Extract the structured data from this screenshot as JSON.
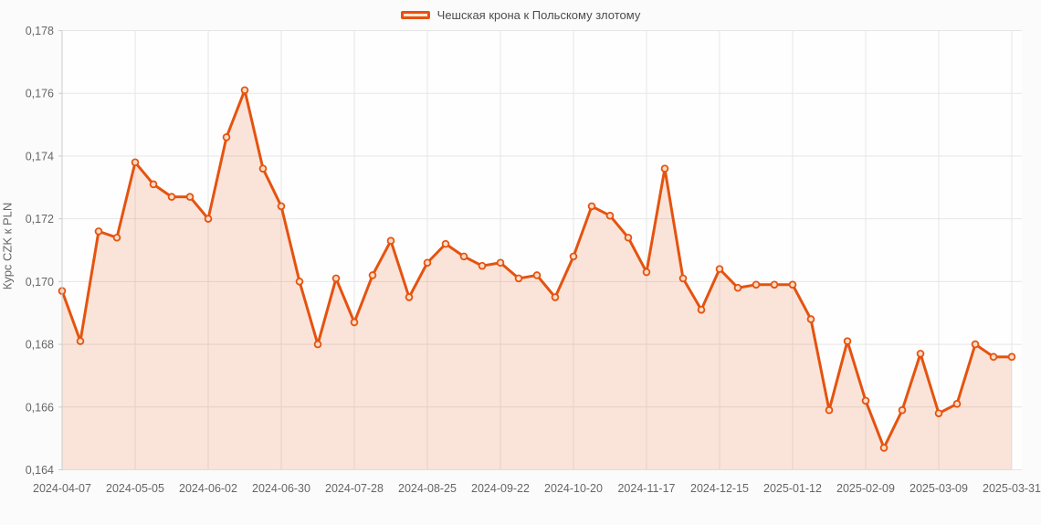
{
  "legend": {
    "label": "Чешская крона к Польскому злотому"
  },
  "chart_data": {
    "type": "area",
    "title": "",
    "xlabel": "",
    "ylabel": "Курс CZK к PLN",
    "legend_position": "top-center",
    "grid": true,
    "decimal_separator": ",",
    "ylim": [
      0.164,
      0.178
    ],
    "yticks": [
      0.178,
      0.176,
      0.174,
      0.172,
      0.17,
      0.168,
      0.166,
      0.164
    ],
    "ytick_labels": [
      "0,178",
      "0,176",
      "0,174",
      "0,172",
      "0,170",
      "0,168",
      "0,166",
      "0,164"
    ],
    "xtick_indices": [
      0,
      4,
      8,
      12,
      16,
      20,
      24,
      28,
      32,
      36,
      40,
      44,
      48,
      52
    ],
    "xtick_labels": [
      "2024-04-07",
      "2024-05-05",
      "2024-06-02",
      "2024-06-30",
      "2024-07-28",
      "2024-08-25",
      "2024-09-22",
      "2024-10-20",
      "2024-11-17",
      "2024-12-15",
      "2025-01-12",
      "2025-02-09",
      "2025-03-09",
      "2025-03-31"
    ],
    "series": [
      {
        "name": "Чешская крона к Польскому злотому",
        "x": [
          "2024-04-07",
          "2024-04-14",
          "2024-04-21",
          "2024-04-28",
          "2024-05-05",
          "2024-05-12",
          "2024-05-19",
          "2024-05-26",
          "2024-06-02",
          "2024-06-09",
          "2024-06-16",
          "2024-06-23",
          "2024-06-30",
          "2024-07-07",
          "2024-07-14",
          "2024-07-21",
          "2024-07-28",
          "2024-08-04",
          "2024-08-11",
          "2024-08-18",
          "2024-08-25",
          "2024-09-01",
          "2024-09-08",
          "2024-09-15",
          "2024-09-22",
          "2024-09-29",
          "2024-10-06",
          "2024-10-13",
          "2024-10-20",
          "2024-10-27",
          "2024-11-03",
          "2024-11-10",
          "2024-11-17",
          "2024-11-24",
          "2024-12-01",
          "2024-12-08",
          "2024-12-15",
          "2024-12-22",
          "2024-12-29",
          "2025-01-05",
          "2025-01-12",
          "2025-01-19",
          "2025-01-26",
          "2025-02-02",
          "2025-02-09",
          "2025-02-16",
          "2025-02-23",
          "2025-03-02",
          "2025-03-09",
          "2025-03-16",
          "2025-03-23",
          "2025-03-30",
          "2025-03-31"
        ],
        "values": [
          0.1697,
          0.1681,
          0.1716,
          0.1714,
          0.1738,
          0.1731,
          0.1727,
          0.1727,
          0.172,
          0.1746,
          0.1761,
          0.1736,
          0.1724,
          0.17,
          0.168,
          0.1701,
          0.1687,
          0.1702,
          0.1713,
          0.1695,
          0.1706,
          0.1712,
          0.1708,
          0.1705,
          0.1706,
          0.1701,
          0.1702,
          0.1695,
          0.1708,
          0.1724,
          0.1721,
          0.1714,
          0.1703,
          0.1736,
          0.1701,
          0.1691,
          0.1704,
          0.1698,
          0.1699,
          0.1699,
          0.1699,
          0.1688,
          0.1659,
          0.1681,
          0.1662,
          0.1647,
          0.1659,
          0.1677,
          0.1658,
          0.1661,
          0.168,
          0.1676,
          0.1676
        ]
      }
    ],
    "colors": {
      "line": "#e5530f",
      "area_fill_rgba": "rgba(229,83,15,0.15)",
      "area_solid": "#fae3d3",
      "marker_fill": "#f9dcc8",
      "grid": "#e6e6e6",
      "axis": "#cccccc",
      "tick_text": "#666666",
      "plot_background": "#fefefe"
    }
  }
}
